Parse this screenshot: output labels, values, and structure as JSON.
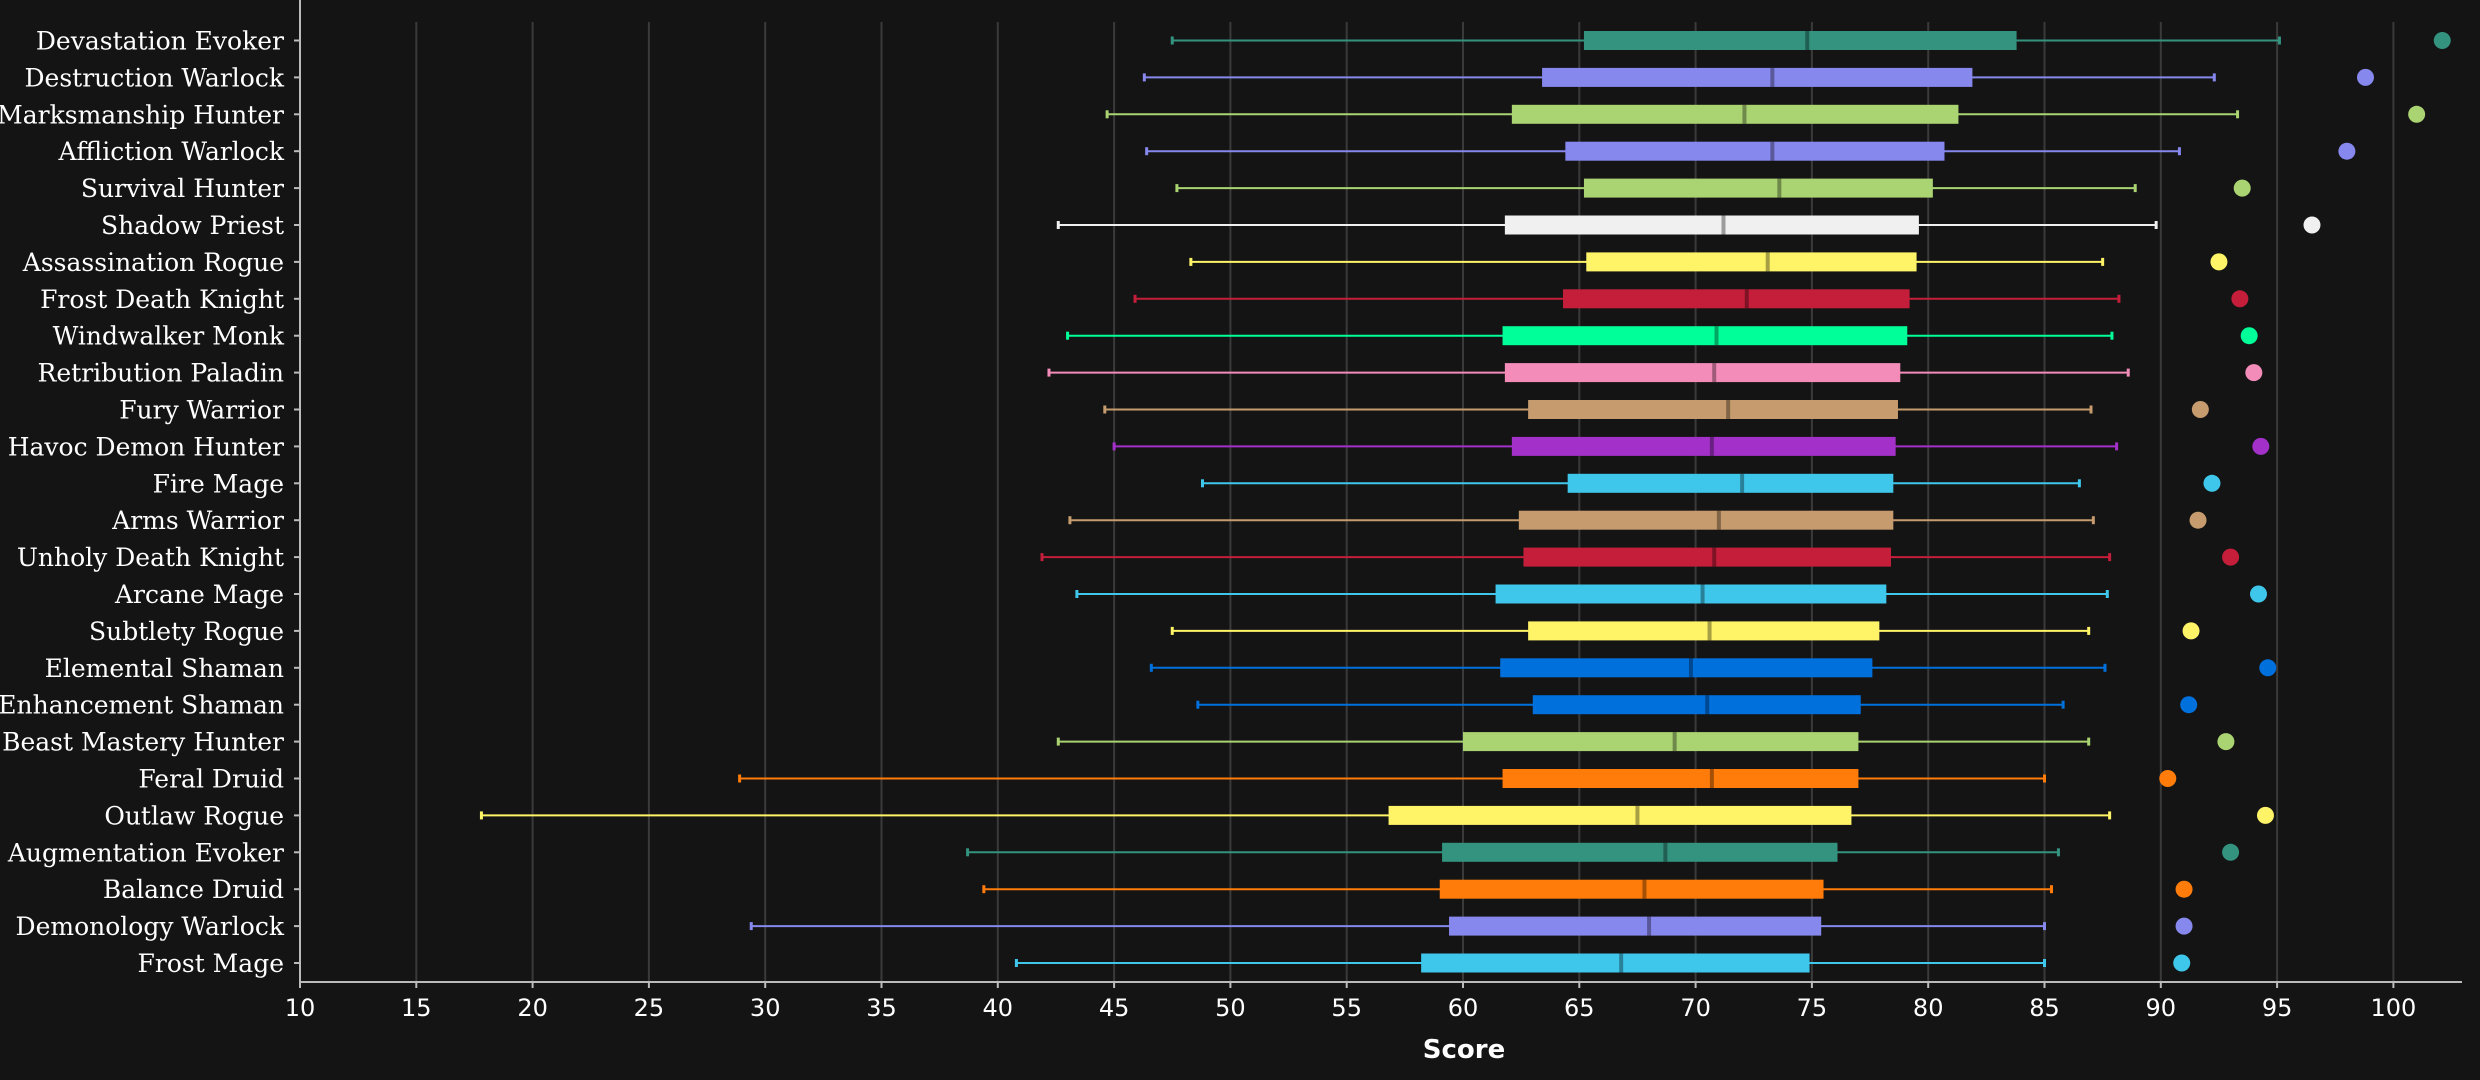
{
  "chart_data": {
    "type": "boxplot",
    "xlabel": "Score",
    "xlim": [
      10,
      102.5
    ],
    "xticks": [
      10,
      15,
      20,
      25,
      30,
      35,
      40,
      45,
      50,
      55,
      60,
      65,
      70,
      75,
      80,
      85,
      90,
      95,
      100
    ],
    "grid": "vertical",
    "colors": {
      "background": "#141414",
      "grid": "#3a3a3a",
      "axis": "#bbbbbb"
    },
    "series": [
      {
        "name": "Devastation Evoker",
        "color": "#33937f",
        "min": 47.5,
        "q1": 65.2,
        "median": 74.8,
        "q3": 83.8,
        "max": 95.1,
        "top": 102.1
      },
      {
        "name": "Destruction Warlock",
        "color": "#8788ee",
        "min": 46.3,
        "q1": 63.4,
        "median": 73.3,
        "q3": 81.9,
        "max": 92.3,
        "top": 98.8
      },
      {
        "name": "Marksmanship Hunter",
        "color": "#aad372",
        "min": 44.7,
        "q1": 62.1,
        "median": 72.1,
        "q3": 81.3,
        "max": 93.3,
        "top": 101.0
      },
      {
        "name": "Affliction Warlock",
        "color": "#8788ee",
        "min": 46.4,
        "q1": 64.4,
        "median": 73.3,
        "q3": 80.7,
        "max": 90.8,
        "top": 98.0
      },
      {
        "name": "Survival Hunter",
        "color": "#aad372",
        "min": 47.7,
        "q1": 65.2,
        "median": 73.6,
        "q3": 80.2,
        "max": 88.9,
        "top": 93.5
      },
      {
        "name": "Shadow Priest",
        "color": "#f0f0f0",
        "min": 42.6,
        "q1": 61.8,
        "median": 71.2,
        "q3": 79.6,
        "max": 89.8,
        "top": 96.5
      },
      {
        "name": "Assassination Rogue",
        "color": "#fff468",
        "min": 48.3,
        "q1": 65.3,
        "median": 73.1,
        "q3": 79.5,
        "max": 87.5,
        "top": 92.5
      },
      {
        "name": "Frost Death Knight",
        "color": "#c41e3a",
        "min": 45.9,
        "q1": 64.3,
        "median": 72.2,
        "q3": 79.2,
        "max": 88.2,
        "top": 93.4
      },
      {
        "name": "Windwalker Monk",
        "color": "#00ff98",
        "min": 43.0,
        "q1": 61.7,
        "median": 70.9,
        "q3": 79.1,
        "max": 87.9,
        "top": 93.8
      },
      {
        "name": "Retribution Paladin",
        "color": "#f48cba",
        "min": 42.2,
        "q1": 61.8,
        "median": 70.8,
        "q3": 78.8,
        "max": 88.6,
        "top": 94.0
      },
      {
        "name": "Fury Warrior",
        "color": "#c69b6d",
        "min": 44.6,
        "q1": 62.8,
        "median": 71.4,
        "q3": 78.7,
        "max": 87.0,
        "top": 91.7
      },
      {
        "name": "Havoc Demon Hunter",
        "color": "#a330c9",
        "min": 45.0,
        "q1": 62.1,
        "median": 70.7,
        "q3": 78.6,
        "max": 88.1,
        "top": 94.3
      },
      {
        "name": "Fire Mage",
        "color": "#3fc7eb",
        "min": 48.8,
        "q1": 64.5,
        "median": 72.0,
        "q3": 78.5,
        "max": 86.5,
        "top": 92.2
      },
      {
        "name": "Arms Warrior",
        "color": "#c69b6d",
        "min": 43.1,
        "q1": 62.4,
        "median": 71.0,
        "q3": 78.5,
        "max": 87.1,
        "top": 91.6
      },
      {
        "name": "Unholy Death Knight",
        "color": "#c41e3a",
        "min": 41.9,
        "q1": 62.6,
        "median": 70.8,
        "q3": 78.4,
        "max": 87.8,
        "top": 93.0
      },
      {
        "name": "Arcane Mage",
        "color": "#3fc7eb",
        "min": 43.4,
        "q1": 61.4,
        "median": 70.3,
        "q3": 78.2,
        "max": 87.7,
        "top": 94.2
      },
      {
        "name": "Subtlety Rogue",
        "color": "#fff468",
        "min": 47.5,
        "q1": 62.8,
        "median": 70.6,
        "q3": 77.9,
        "max": 86.9,
        "top": 91.3
      },
      {
        "name": "Elemental Shaman",
        "color": "#0070dd",
        "min": 46.6,
        "q1": 61.6,
        "median": 69.8,
        "q3": 77.6,
        "max": 87.6,
        "top": 94.6
      },
      {
        "name": "Enhancement Shaman",
        "color": "#0070dd",
        "min": 48.6,
        "q1": 63.0,
        "median": 70.5,
        "q3": 77.1,
        "max": 85.8,
        "top": 91.2
      },
      {
        "name": "Beast Mastery Hunter",
        "color": "#aad372",
        "min": 42.6,
        "q1": 60.0,
        "median": 69.1,
        "q3": 77.0,
        "max": 86.9,
        "top": 92.8
      },
      {
        "name": "Feral Druid",
        "color": "#ff7c0a",
        "min": 28.9,
        "q1": 61.7,
        "median": 70.7,
        "q3": 77.0,
        "max": 85.0,
        "top": 90.3
      },
      {
        "name": "Outlaw Rogue",
        "color": "#fff468",
        "min": 17.8,
        "q1": 56.8,
        "median": 67.5,
        "q3": 76.7,
        "max": 87.8,
        "top": 94.5
      },
      {
        "name": "Augmentation Evoker",
        "color": "#33937f",
        "min": 38.7,
        "q1": 59.1,
        "median": 68.7,
        "q3": 76.1,
        "max": 85.6,
        "top": 93.0
      },
      {
        "name": "Balance Druid",
        "color": "#ff7c0a",
        "min": 39.4,
        "q1": 59.0,
        "median": 67.8,
        "q3": 75.5,
        "max": 85.3,
        "top": 91.0
      },
      {
        "name": "Demonology Warlock",
        "color": "#8788ee",
        "min": 29.4,
        "q1": 59.4,
        "median": 68.0,
        "q3": 75.4,
        "max": 85.0,
        "top": 91.0
      },
      {
        "name": "Frost Mage",
        "color": "#3fc7eb",
        "min": 40.8,
        "q1": 58.2,
        "median": 66.8,
        "q3": 74.9,
        "max": 85.0,
        "top": 90.9
      }
    ]
  }
}
